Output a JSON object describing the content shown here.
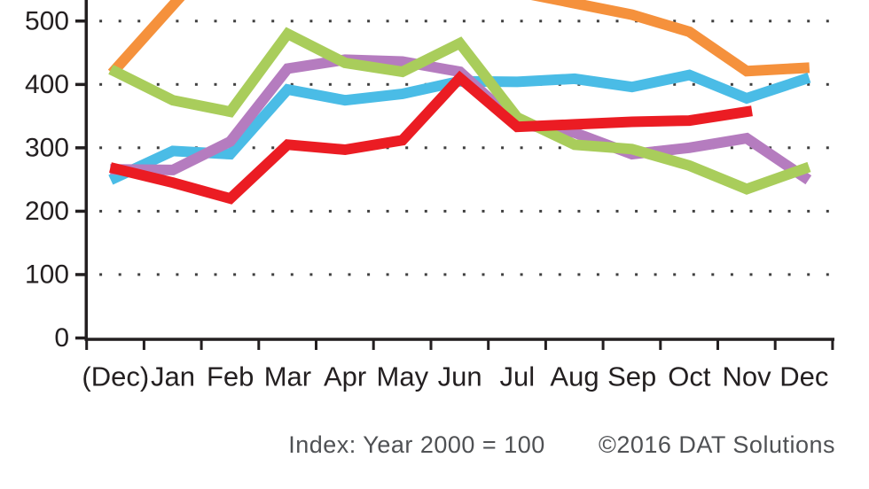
{
  "chart_data": {
    "type": "line",
    "x_categories": [
      "(Dec)",
      "Jan",
      "Feb",
      "Mar",
      "Apr",
      "May",
      "Jun",
      "Jul",
      "Aug",
      "Sep",
      "Oct",
      "Nov",
      "Dec"
    ],
    "yticks": [
      0,
      100,
      200,
      300,
      400,
      500
    ],
    "ylim_visible": [
      0,
      535
    ],
    "grid": "dotted-horizontal",
    "legend": "none-visible (cropped)",
    "series": [
      {
        "name": "orange",
        "color": "#F5913C",
        "values": [
          424,
          525,
          null,
          null,
          null,
          null,
          null,
          null,
          528,
          510,
          483,
          421,
          426
        ],
        "note": "line exits above visible crop between Jan and Aug"
      },
      {
        "name": "cyan",
        "color": "#4ABCE6",
        "values": [
          253,
          295,
          290,
          392,
          375,
          385,
          405,
          404,
          409,
          396,
          415,
          378,
          408
        ]
      },
      {
        "name": "purple",
        "color": "#B57CBF",
        "values": [
          266,
          265,
          310,
          425,
          439,
          436,
          420,
          338,
          324,
          290,
          300,
          315,
          254
        ]
      },
      {
        "name": "green",
        "color": "#A9CD5B",
        "values": [
          420,
          375,
          357,
          480,
          434,
          420,
          465,
          348,
          305,
          298,
          272,
          235,
          267
        ]
      },
      {
        "name": "red",
        "color": "#EB1C23",
        "values": [
          267,
          245,
          220,
          305,
          297,
          312,
          410,
          333,
          337,
          341,
          343,
          357,
          null
        ],
        "note": "line ends at Nov"
      }
    ],
    "axis_color": "#231F20",
    "grid_dot_color": "#3F3F3F",
    "footnote": "Index: Year 2000 = 100",
    "credit": "©2016 DAT Solutions"
  },
  "footer": {
    "index_note": "Index: Year 2000 = 100",
    "credit": "©2016 DAT Solutions"
  }
}
